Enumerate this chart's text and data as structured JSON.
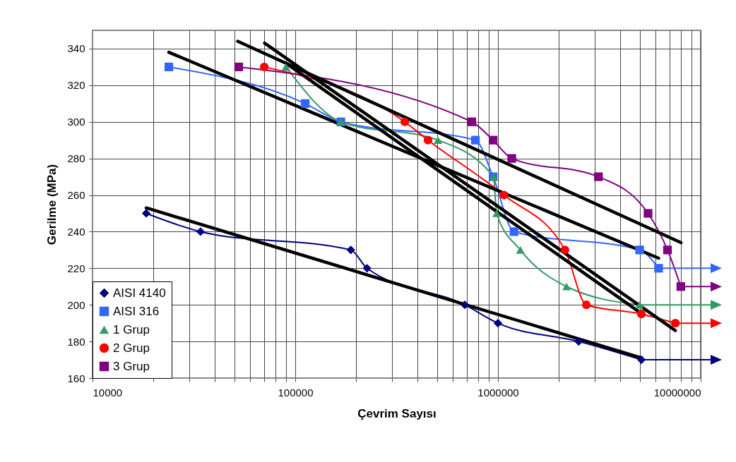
{
  "chart_data": {
    "type": "line",
    "xlabel": "Çevrim Sayısı",
    "ylabel": "Gerilme (MPa)",
    "log": "x",
    "xlim": [
      10000,
      10000000
    ],
    "ylim": [
      160,
      350
    ],
    "xticks": [
      10000,
      {
        "value": 20000,
        "label": null
      },
      {
        "value": 30000,
        "label": null
      },
      {
        "value": 40000,
        "label": null
      },
      {
        "value": 50000,
        "label": null
      },
      {
        "value": 60000,
        "label": null
      },
      {
        "value": 70000,
        "label": null
      },
      {
        "value": 80000,
        "label": null
      },
      {
        "value": 90000,
        "label": null
      },
      100000,
      {
        "value": 200000,
        "label": null
      },
      {
        "value": 300000,
        "label": null
      },
      {
        "value": 400000,
        "label": null
      },
      {
        "value": 500000,
        "label": null
      },
      {
        "value": 600000,
        "label": null
      },
      {
        "value": 700000,
        "label": null
      },
      {
        "value": 800000,
        "label": null
      },
      {
        "value": 900000,
        "label": null
      },
      1000000,
      {
        "value": 2000000,
        "label": null
      },
      {
        "value": 3000000,
        "label": null
      },
      {
        "value": 4000000,
        "label": null
      },
      {
        "value": 5000000,
        "label": null
      },
      {
        "value": 6000000,
        "label": null
      },
      {
        "value": 7000000,
        "label": null
      },
      {
        "value": 8000000,
        "label": null
      },
      {
        "value": 9000000,
        "label": null
      },
      10000000
    ],
    "yticks": [
      160,
      180,
      200,
      220,
      240,
      260,
      280,
      300,
      320,
      340
    ],
    "grid": true,
    "legend": "bottom left",
    "series": [
      {
        "name": "AISI 4140",
        "color": "#000080",
        "marker": "diamond",
        "x": [
          18400,
          34100,
          188000,
          226000,
          686000,
          1000000,
          2500000,
          5100000
        ],
        "values": [
          250,
          240,
          230,
          220,
          200,
          190,
          180,
          170
        ]
      },
      {
        "name": "AISI 316",
        "color": "#3366ff",
        "marker": "square",
        "x": [
          23800,
          112000,
          168000,
          774000,
          946000,
          1200000,
          5000000,
          6200000
        ],
        "values": [
          330,
          310,
          300,
          290,
          270,
          240,
          230,
          220
        ]
      },
      {
        "name": "1 Grup",
        "color": "#339966",
        "marker": "triangle",
        "x": [
          90000,
          168000,
          506000,
          950000,
          985000,
          1290000,
          2180000,
          5000000
        ],
        "values": [
          330,
          300,
          290,
          270,
          250,
          230,
          210,
          200
        ]
      },
      {
        "name": "2 Grup",
        "color": "#ff0000",
        "marker": "circle",
        "x": [
          70300,
          347000,
          452000,
          1070000,
          2140000,
          2730000,
          5100000,
          7500000
        ],
        "values": [
          330,
          300,
          290,
          260,
          230,
          200,
          195,
          190
        ]
      },
      {
        "name": "3 Grup",
        "color": "#800080",
        "marker": "square",
        "x": [
          52600,
          743000,
          946000,
          1170000,
          3130000,
          5500000,
          6860000,
          7980000
        ],
        "values": [
          330,
          300,
          290,
          280,
          270,
          250,
          230,
          210
        ]
      },
      {
        "color": "#000000",
        "marker": "none",
        "x": [
          18400,
          5100000
        ],
        "values": [
          253,
          171
        ]
      },
      {
        "color": "#000000",
        "marker": "none",
        "x": [
          23800,
          6200000
        ],
        "values": [
          338,
          225.5
        ]
      },
      {
        "color": "#000000",
        "marker": "none",
        "x": [
          52000,
          8000000
        ],
        "values": [
          344,
          234
        ]
      },
      {
        "color": "#000000",
        "marker": "none",
        "x": [
          70600,
          7500000
        ],
        "values": [
          343,
          186
        ]
      },
      {
        "color": "#000000",
        "marker": "none",
        "x": [
          90000,
          5000000
        ],
        "values": [
          332,
          196
        ]
      }
    ]
  }
}
